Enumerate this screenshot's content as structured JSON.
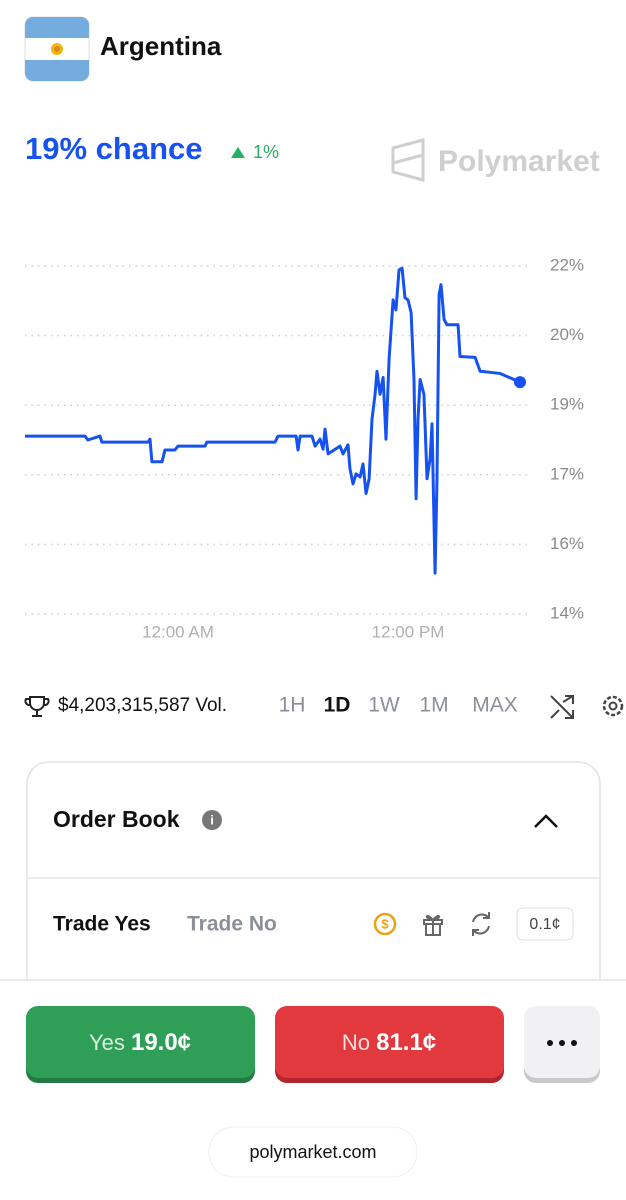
{
  "header": {
    "title": "Argentina"
  },
  "chance": {
    "text": "19% chance",
    "change": "1%"
  },
  "brand": "Polymarket",
  "chart_data": {
    "type": "line",
    "color": "#1652f0",
    "grid": true,
    "x": [
      -7.98,
      -4.85,
      -4.7,
      -4.07,
      -3.97,
      -1.57,
      -1.46,
      -1.36,
      -0.83,
      -0.68,
      -0.16,
      0.0,
      1.41,
      1.51,
      5.06,
      5.22,
      6.16,
      6.26,
      6.37,
      6.99,
      7.15,
      7.41,
      7.57,
      7.67,
      7.83,
      8.45,
      8.61,
      8.87,
      8.97,
      9.13,
      9.29,
      9.5,
      9.65,
      9.81,
      9.97,
      10.12,
      10.28,
      10.38,
      10.54,
      10.7,
      10.85,
      11.01,
      11.22,
      11.37,
      11.53,
      11.69,
      11.84,
      12.0,
      12.16,
      12.31,
      12.42,
      12.52,
      12.63,
      12.83,
      12.99,
      13.15,
      13.25,
      13.41,
      13.51,
      13.62,
      13.72,
      13.88,
      14.03,
      14.61,
      14.71,
      15.5,
      15.76,
      16.8,
      17.84
    ],
    "values": [
      18.09,
      18.09,
      18.0,
      18.09,
      17.95,
      17.95,
      18.02,
      17.5,
      17.5,
      17.77,
      17.77,
      17.86,
      17.86,
      17.95,
      17.95,
      18.09,
      18.09,
      17.77,
      18.09,
      18.09,
      17.86,
      18.02,
      17.79,
      18.25,
      17.68,
      17.86,
      17.68,
      17.89,
      17.34,
      16.99,
      17.22,
      17.15,
      17.45,
      16.77,
      17.11,
      18.48,
      19.05,
      19.58,
      19.05,
      19.44,
      18.02,
      19.85,
      21.22,
      20.99,
      21.91,
      21.95,
      21.27,
      21.22,
      20.93,
      19.39,
      16.65,
      18.48,
      19.39,
      19.05,
      17.11,
      17.57,
      18.37,
      14.94,
      17.11,
      21.34,
      21.57,
      20.77,
      20.65,
      20.65,
      19.92,
      19.9,
      19.58,
      19.53,
      19.33
    ],
    "xlim": [
      -7.98,
      17.84
    ],
    "xticks": [
      {
        "value": 0,
        "label": "12:00 AM"
      },
      {
        "value": 12,
        "label": "12:00 PM"
      }
    ],
    "ylim": [
      14,
      22
    ],
    "yticks": [
      {
        "value": 14,
        "label": "14%"
      },
      {
        "value": 15.6,
        "label": "16%"
      },
      {
        "value": 17.2,
        "label": "17%"
      },
      {
        "value": 18.8,
        "label": "19%"
      },
      {
        "value": 20.4,
        "label": "20%"
      },
      {
        "value": 22,
        "label": "22%"
      }
    ]
  },
  "volume": "$4,203,315,587 Vol.",
  "ranges": [
    "1H",
    "1D",
    "1W",
    "1M",
    "MAX"
  ],
  "active_range": "1D",
  "order_book": {
    "title": "Order Book",
    "tabs": [
      "Trade Yes",
      "Trade No"
    ],
    "tick_size": "0.1¢"
  },
  "buttons": {
    "yes": {
      "label": "Yes",
      "price": "19.0¢"
    },
    "no": {
      "label": "No",
      "price": "81.1¢"
    }
  },
  "url": "polymarket.com"
}
